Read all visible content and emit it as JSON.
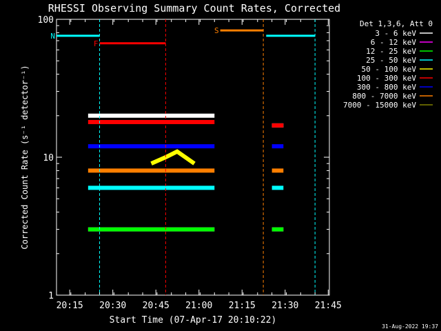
{
  "chart_data": {
    "type": "line",
    "title": "RHESSI Observing Summary Count Rates, Corrected",
    "xlabel": "Start Time (07-Apr-17 20:10:22)",
    "ylabel": "Corrected Count Rate (s⁻¹ detector⁻¹)",
    "y_scale": "log",
    "ylim": [
      1,
      100
    ],
    "xlim_minutes_after_start": [
      0,
      95
    ],
    "x_ticks": [
      {
        "label": "20:15",
        "t": 4.6
      },
      {
        "label": "20:30",
        "t": 19.6
      },
      {
        "label": "20:45",
        "t": 34.6
      },
      {
        "label": "21:00",
        "t": 49.6
      },
      {
        "label": "21:15",
        "t": 64.6
      },
      {
        "label": "21:30",
        "t": 79.6
      },
      {
        "label": "21:45",
        "t": 94.6
      }
    ],
    "y_tick_labels": [
      "100",
      "10",
      "1"
    ],
    "legend_header": "Det 1,3,6, Att 0",
    "series": [
      {
        "name": "3 - 6 keV",
        "color": "#ffffff",
        "data_segments": [
          [
            [
              11,
              20
            ],
            [
              55,
              20
            ]
          ],
          [
            [
              75,
              17
            ],
            [
              79,
              17
            ]
          ]
        ]
      },
      {
        "name": "6 - 12 keV",
        "color": "#ff00ff",
        "data_segments": [
          [
            [
              11,
              3
            ],
            [
              55,
              3
            ]
          ],
          [
            [
              75,
              3
            ],
            [
              79,
              3
            ]
          ]
        ]
      },
      {
        "name": "12 - 25 keV",
        "color": "#00ff00",
        "data_segments": [
          [
            [
              11,
              3
            ],
            [
              55,
              3
            ]
          ],
          [
            [
              75,
              3
            ],
            [
              79,
              3
            ]
          ]
        ]
      },
      {
        "name": "25 - 50 keV",
        "color": "#00ffff",
        "data_segments": [
          [
            [
              11,
              6
            ],
            [
              55,
              6
            ]
          ],
          [
            [
              75,
              6
            ],
            [
              79,
              6
            ]
          ]
        ]
      },
      {
        "name": "50 - 100 keV",
        "color": "#ffff00",
        "data_segments": [
          [
            [
              33,
              9
            ],
            [
              38,
              10
            ],
            [
              42,
              11
            ],
            [
              48,
              9
            ]
          ]
        ]
      },
      {
        "name": "100 - 300 keV",
        "color": "#ff0000",
        "data_segments": [
          [
            [
              11,
              18
            ],
            [
              55,
              18
            ]
          ],
          [
            [
              75,
              17
            ],
            [
              79,
              17
            ]
          ]
        ]
      },
      {
        "name": "300 - 800 keV",
        "color": "#0000ff",
        "data_segments": [
          [
            [
              11,
              12
            ],
            [
              55,
              12
            ]
          ],
          [
            [
              75,
              12
            ],
            [
              79,
              12
            ]
          ]
        ]
      },
      {
        "name": "800 - 7000 keV",
        "color": "#ff7f00",
        "data_segments": [
          [
            [
              11,
              8
            ],
            [
              55,
              8
            ]
          ],
          [
            [
              75,
              8
            ],
            [
              79,
              8
            ]
          ]
        ]
      },
      {
        "name": "7000 - 15000 keV",
        "color": "#808000",
        "data_segments": []
      }
    ],
    "annotations": [
      {
        "label": "N",
        "color": "#00ffff",
        "level": 76,
        "x_range": [
          0,
          15
        ],
        "x_end": [
          73,
          90
        ]
      },
      {
        "label": "F",
        "color": "#ff0000",
        "level": 67,
        "x_range": [
          15,
          38
        ]
      },
      {
        "label": "S",
        "color": "#ff7f00",
        "level": 83,
        "x_range": [
          57,
          72
        ]
      }
    ]
  },
  "timestamp": "31-Aug-2022 19:37"
}
